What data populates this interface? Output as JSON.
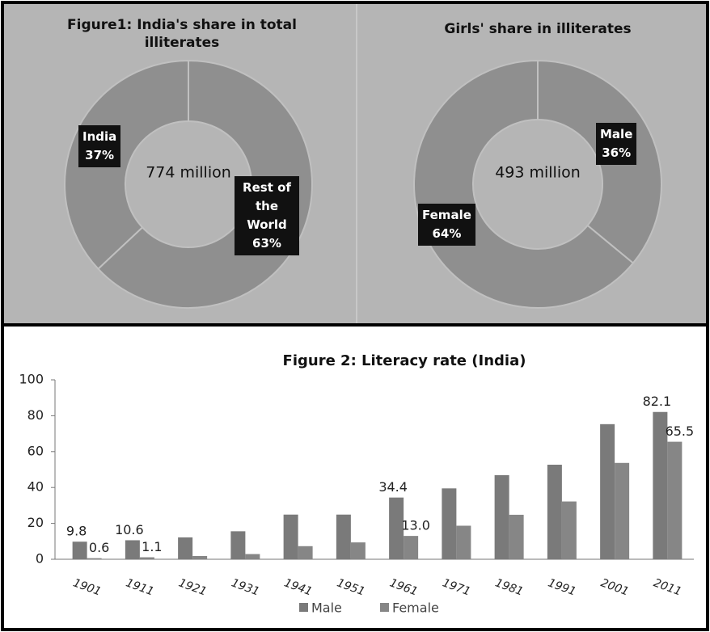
{
  "chart_data": [
    {
      "type": "donut",
      "title": "Figure1: India's share in total illiterates",
      "center_label": "774 million",
      "categories": [
        "India",
        "Rest of the World"
      ],
      "values": [
        37,
        63
      ],
      "value_labels": [
        "37%",
        "63%"
      ],
      "color": "#8f8f8f"
    },
    {
      "type": "donut",
      "title": "Girls' share in illiterates",
      "center_label": "493 million",
      "categories": [
        "Male",
        "Female"
      ],
      "values": [
        36,
        64
      ],
      "value_labels": [
        "36%",
        "64%"
      ],
      "color": "#8f8f8f"
    },
    {
      "type": "bar",
      "title": "Figure 2: Literacy rate (India)",
      "categories": [
        "1901",
        "1911",
        "1921",
        "1931",
        "1941",
        "1951",
        "1961",
        "1971",
        "1981",
        "1991",
        "2001",
        "2011"
      ],
      "series": [
        {
          "name": "Male",
          "color": "#7a7a7a",
          "values": [
            9.8,
            10.6,
            12.2,
            15.6,
            24.9,
            24.9,
            34.4,
            39.5,
            46.9,
            52.7,
            75.3,
            82.1
          ],
          "value_labels": [
            "9.8",
            "10.6",
            null,
            null,
            null,
            null,
            "34.4",
            null,
            null,
            null,
            null,
            "82.1"
          ]
        },
        {
          "name": "Female",
          "color": "#868686",
          "values": [
            0.6,
            1.1,
            1.8,
            2.9,
            7.3,
            9.4,
            13.0,
            18.7,
            24.8,
            32.2,
            53.7,
            65.5
          ],
          "value_labels": [
            "0.6",
            "1.1",
            null,
            null,
            null,
            null,
            "13.0",
            null,
            null,
            null,
            null,
            "65.5"
          ]
        }
      ],
      "ylim": [
        0,
        100
      ],
      "yticks": [
        0,
        20,
        40,
        60,
        80,
        100
      ],
      "legend": "bottom"
    }
  ]
}
